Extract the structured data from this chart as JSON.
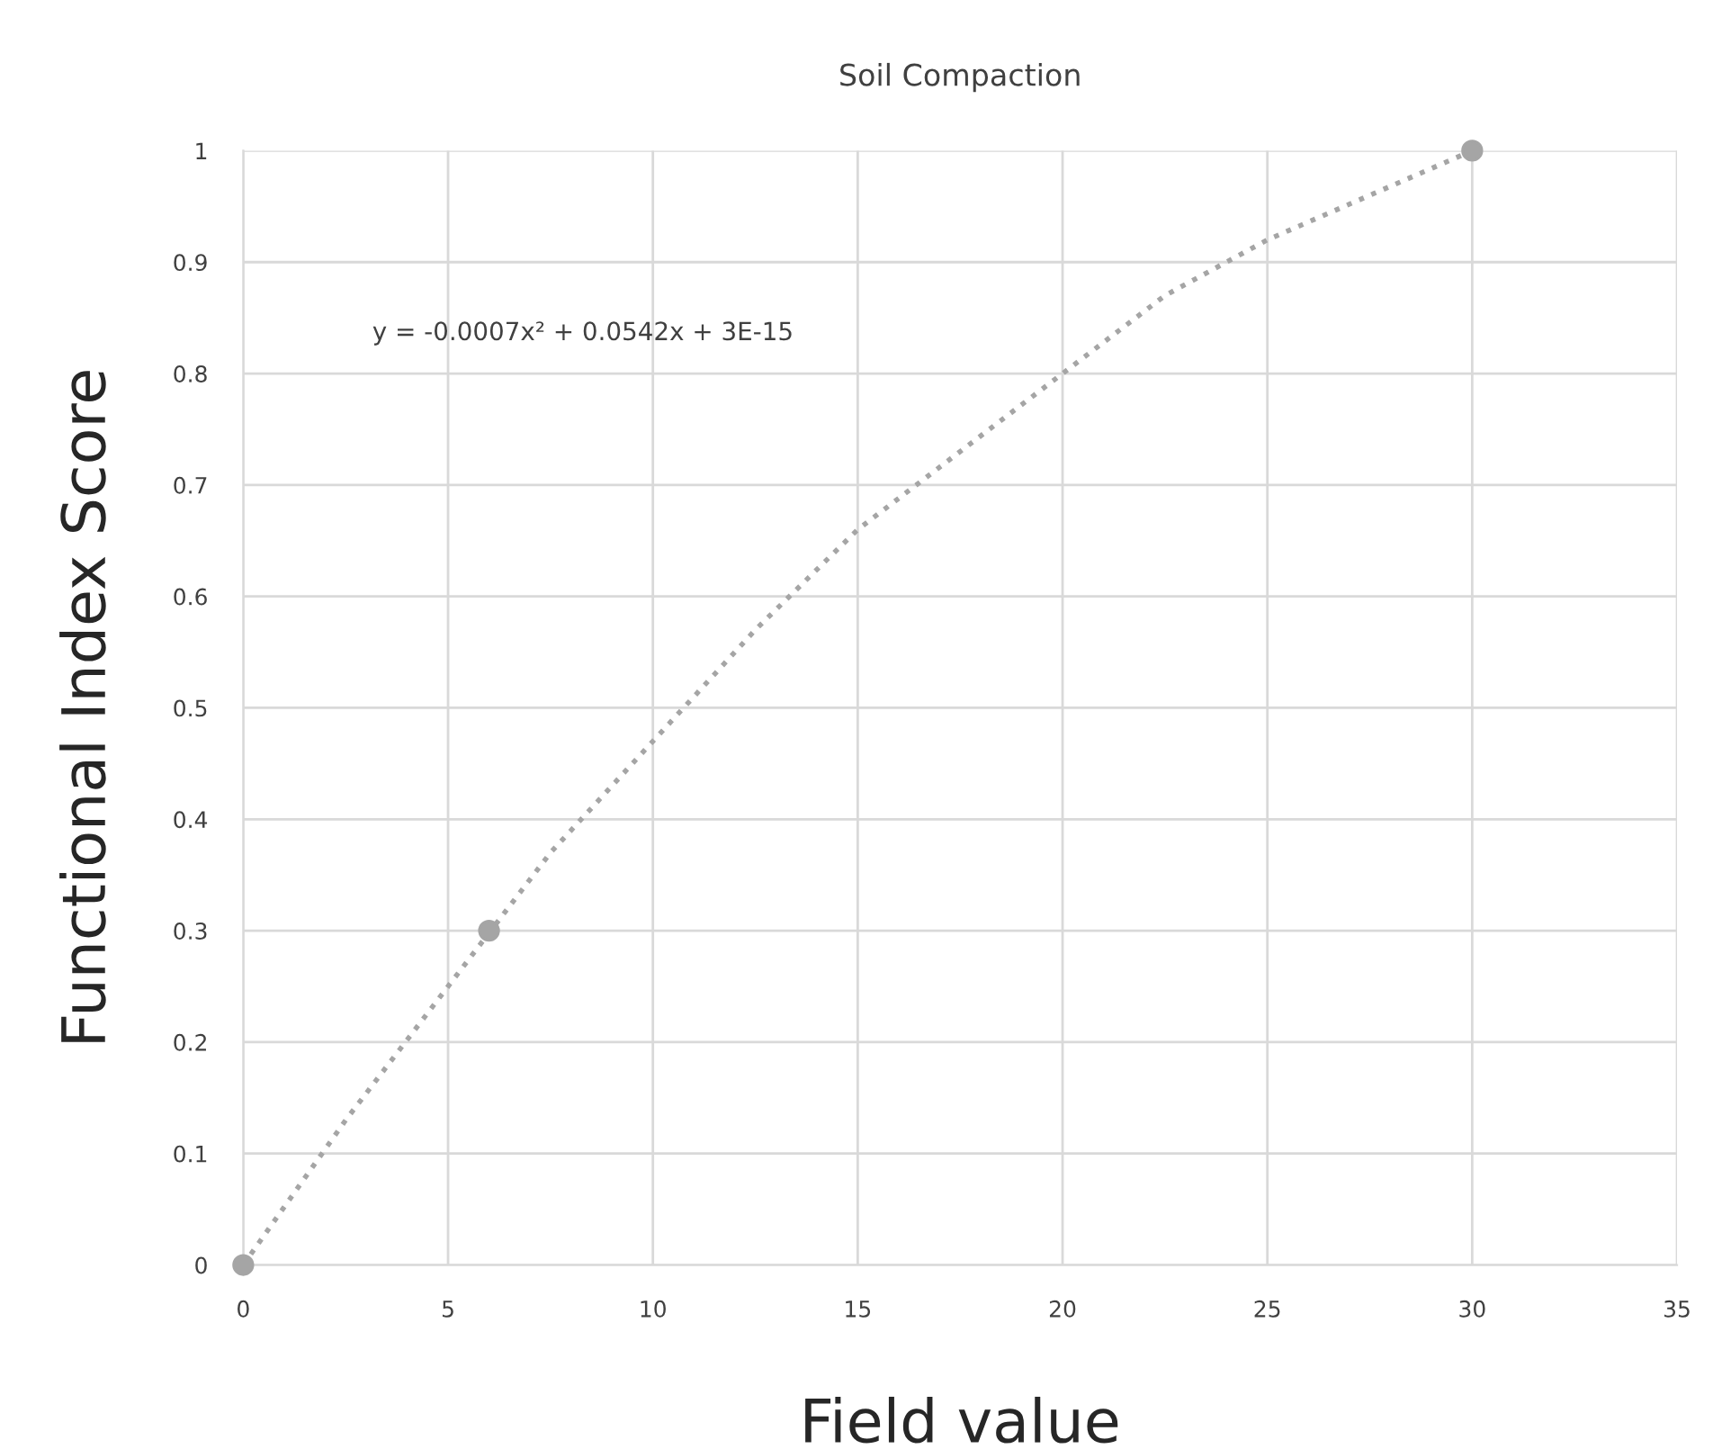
{
  "chart_data": {
    "type": "scatter",
    "title": "Soil Compaction",
    "xlabel": "Field value",
    "ylabel": "Functional Index Score",
    "x": [
      0,
      6,
      30
    ],
    "series": [
      {
        "color": "#a5a5a5",
        "values": [
          0,
          0.3,
          1
        ],
        "marker": "circle"
      },
      {
        "type": "line",
        "color": "#a5a5a5",
        "line_style": "dotted",
        "marker": "none",
        "x": [
          0,
          2.5,
          5,
          7.5,
          10,
          12.5,
          15,
          17.5,
          20,
          22.5,
          25,
          27.5,
          30
        ],
        "values": [
          0,
          0.13,
          0.25,
          0.37,
          0.47,
          0.57,
          0.66,
          0.73,
          0.8,
          0.87,
          0.92,
          0.96,
          1.0
        ]
      }
    ],
    "annotations": [
      "y = -0.0007x² + 0.0542x + 3E-15"
    ],
    "xlim": [
      0,
      35
    ],
    "xticks": [
      0,
      5,
      10,
      15,
      20,
      25,
      30,
      35
    ],
    "ylim": [
      0,
      1
    ],
    "yticks": [
      0,
      0.1,
      0.2,
      0.3,
      0.4,
      0.5,
      0.6,
      0.7,
      0.8,
      0.9,
      1
    ],
    "grid": true,
    "legend": false
  }
}
